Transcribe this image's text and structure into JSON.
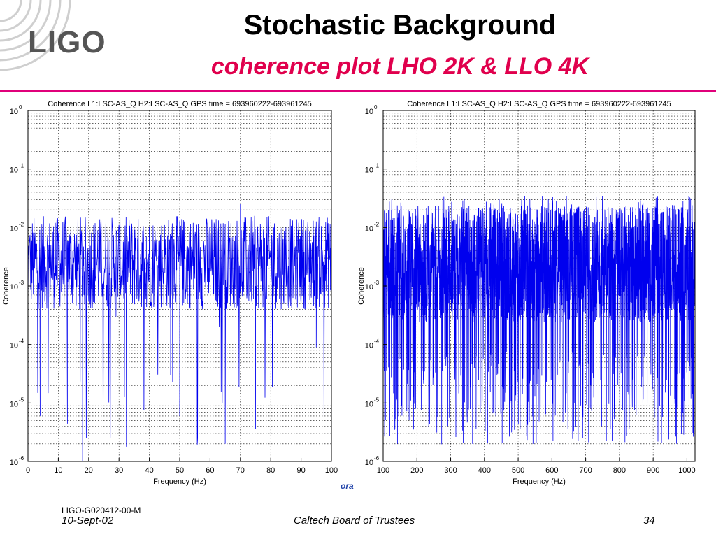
{
  "slide": {
    "title": "Stochastic Background",
    "subtitle": "coherence plot LHO 2K & LLO 4K",
    "logo_text": "LIGO",
    "footer_doc": "LIGO-G020412-00-M",
    "footer_date": "10-Sept-02",
    "footer_center": "Caltech Board of Trustees",
    "footer_page": "34",
    "stray_label": "ora",
    "accent_color": "#e0007a",
    "subtitle_color": "#e0004d",
    "trace_color": "#0000ee"
  },
  "chart_data": [
    {
      "type": "line",
      "title": "Coherence L1:LSC-AS_Q H2:LSC-AS_Q  GPS time = 693960222-693961245",
      "xlabel": "Frequency (Hz)",
      "ylabel": "Coherence",
      "xlim": [
        0,
        100
      ],
      "ylim": [
        1e-06,
        1
      ],
      "yscale": "log",
      "grid": true,
      "xticks": [
        "0",
        "10",
        "20",
        "30",
        "40",
        "50",
        "60",
        "70",
        "80",
        "90",
        "100"
      ],
      "yticks": [
        "10^-6",
        "10^-5",
        "10^-4",
        "10^-3",
        "10^-2",
        "10^-1",
        "10^0"
      ],
      "series": [
        {
          "color": "#0000ee",
          "description": "dense noise trace, typical coherence ~1e-3 to 1e-2, occasional dips to ~1e-6",
          "x": [
            0,
            2,
            4,
            5,
            7,
            9,
            11,
            13,
            15,
            17,
            18,
            19,
            21,
            23,
            25,
            27,
            29,
            31,
            33,
            35,
            37,
            39,
            41,
            43,
            45,
            47,
            48,
            49,
            50,
            51,
            53,
            55,
            57,
            59,
            60,
            61,
            63,
            64,
            65,
            66,
            67,
            69,
            70,
            71,
            73,
            75,
            77,
            79,
            81,
            83,
            85,
            87,
            89,
            91,
            93,
            95,
            97,
            99,
            100
          ],
          "y": [
            0.003,
            0.008,
            0.001,
            0.01,
            0.002,
            0.012,
            0.0008,
            0.006,
            0.003,
            0.0004,
            1e-06,
            0.005,
            0.002,
            0.009,
            0.001,
            0.006,
            0.0003,
            0.008,
            0.002,
            0.01,
            0.0009,
            0.007,
            0.003,
            0.002,
            0.011,
            3e-05,
            0.004,
            0.015,
            6e-06,
            0.009,
            0.002,
            0.007,
            0.001,
            0.012,
            0.0009,
            0.004,
            0.0002,
            1e-05,
            2e-06,
            0.006,
            0.003,
            0.0005,
            0.025,
            0.002,
            0.008,
            0.001,
            0.005,
            0.003,
            0.01,
            0.0006,
            0.007,
            0.002,
            0.009,
            0.001,
            0.006,
            9e-05,
            0.004,
            0.008,
            0.003
          ]
        }
      ]
    },
    {
      "type": "line",
      "title": "Coherence L1:LSC-AS_Q H2:LSC-AS_Q  GPS time = 693960222-693961245",
      "xlabel": "Frequency (Hz)",
      "ylabel": "Coherence",
      "xlim": [
        100,
        1024
      ],
      "ylim": [
        1e-06,
        1
      ],
      "yscale": "log",
      "grid": true,
      "xticks": [
        "100",
        "200",
        "300",
        "400",
        "500",
        "600",
        "700",
        "800",
        "900",
        "1000"
      ],
      "yticks": [
        "10^-6",
        "10^-5",
        "10^-4",
        "10^-3",
        "10^-2",
        "10^-1",
        "10^0"
      ],
      "series": [
        {
          "color": "#0000ee",
          "description": "very dense noise band, coherence mostly 3e-4 to 2e-2, spikes down to ~1e-5",
          "x": [
            100,
            1024
          ],
          "y": [
            0.003,
            0.003
          ]
        }
      ]
    }
  ]
}
